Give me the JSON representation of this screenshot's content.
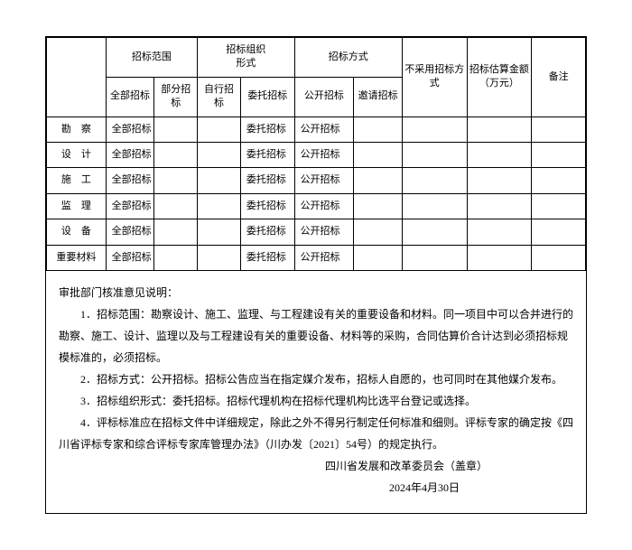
{
  "headers": {
    "scope": "招标范围",
    "orgForm": "招标组织\n形式",
    "method": "招标方式",
    "notUsed": "不采用招标方式",
    "budget": "招标估算金额（万元）",
    "remark": "备注",
    "fullBid": "全部招标",
    "partBid": "部分招标",
    "selfBid": "自行招标",
    "delegateBid": "委托招标",
    "openBid": "公开招标",
    "inviteBid": "邀请招标"
  },
  "rows": [
    {
      "label": "勘　察",
      "scope": "全部招标",
      "org": "委托招标",
      "method": "公开招标"
    },
    {
      "label": "设　计",
      "scope": "全部招标",
      "org": "委托招标",
      "method": "公开招标"
    },
    {
      "label": "施　工",
      "scope": "全部招标",
      "org": "委托招标",
      "method": "公开招标"
    },
    {
      "label": "监　理",
      "scope": "全部招标",
      "org": "委托招标",
      "method": "公开招标"
    },
    {
      "label": "设　备",
      "scope": "全部招标",
      "org": "委托招标",
      "method": "公开招标"
    },
    {
      "label": "重要材料",
      "scope": "全部招标",
      "org": "委托招标",
      "method": "公开招标"
    }
  ],
  "notes": {
    "title": "审批部门核准意见说明：",
    "p1": "1．招标范围：勘察设计、施工、监理、与工程建设有关的重要设备和材料。同一项目中可以合并进行的勘察、施工、设计、监理以及与工程建设有关的重要设备、材料等的采购，合同估算价合计达到必须招标规模标准的，必须招标。",
    "p2": "2．招标方式：公开招标。招标公告应当在指定媒介发布，招标人自愿的，也可同时在其他媒介发布。",
    "p3": "3．招标组织形式：委托招标。招标代理机构在招标代理机构比选平台登记或选择。",
    "p4": "4．评标标准应在招标文件中详细规定，除此之外不得另行制定任何标准和细则。评标专家的确定按《四川省评标专家和综合评标专家库管理办法》（川办发〔2021〕54号）的规定执行。",
    "sig": "四川省发展和改革委员会（盖章）",
    "date": "2024年4月30日"
  }
}
